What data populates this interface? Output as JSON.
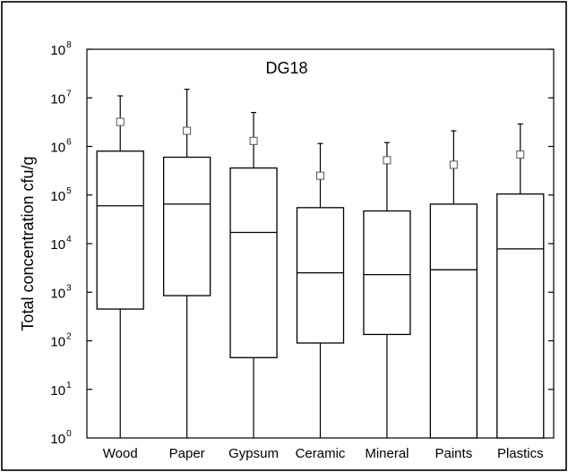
{
  "chart_data": {
    "type": "box",
    "title": "DG18",
    "xlabel": "",
    "ylabel": "Total concentration cfu/g",
    "yscale": "log",
    "ylim": [
      1,
      100000000
    ],
    "yticks": [
      {
        "base": "10",
        "exp": "0",
        "value": 1
      },
      {
        "base": "10",
        "exp": "1",
        "value": 10
      },
      {
        "base": "10",
        "exp": "2",
        "value": 100
      },
      {
        "base": "10",
        "exp": "3",
        "value": 1000
      },
      {
        "base": "10",
        "exp": "4",
        "value": 10000
      },
      {
        "base": "10",
        "exp": "5",
        "value": 100000
      },
      {
        "base": "10",
        "exp": "6",
        "value": 1000000
      },
      {
        "base": "10",
        "exp": "7",
        "value": 10000000
      },
      {
        "base": "10",
        "exp": "8",
        "value": 100000000
      }
    ],
    "categories": [
      "Wood",
      "Paper",
      "Gypsum",
      "Ceramic",
      "Mineral",
      "Paints",
      "Plastics"
    ],
    "boxes": [
      {
        "whisker_low": 1,
        "q1": 450,
        "median": 60000,
        "q3": 800000,
        "whisker_high": 11000000,
        "mean": 3200000
      },
      {
        "whisker_low": 1,
        "q1": 850,
        "median": 65000,
        "q3": 600000,
        "whisker_high": 15000000,
        "mean": 2100000
      },
      {
        "whisker_low": 1,
        "q1": 45,
        "median": 17000,
        "q3": 360000,
        "whisker_high": 5000000,
        "mean": 1300000
      },
      {
        "whisker_low": 1,
        "q1": 90,
        "median": 2500,
        "q3": 55000,
        "whisker_high": 1150000,
        "mean": 250000
      },
      {
        "whisker_low": 1,
        "q1": 135,
        "median": 2300,
        "q3": 47000,
        "whisker_high": 1200000,
        "mean": 520000
      },
      {
        "whisker_low": 1,
        "q1": 1,
        "median": 2900,
        "q3": 65000,
        "whisker_high": 2100000,
        "mean": 420000
      },
      {
        "whisker_low": 1,
        "q1": 1,
        "median": 7800,
        "q3": 105000,
        "whisker_high": 2900000,
        "mean": 680000
      }
    ],
    "grid": false,
    "legend": "none"
  }
}
